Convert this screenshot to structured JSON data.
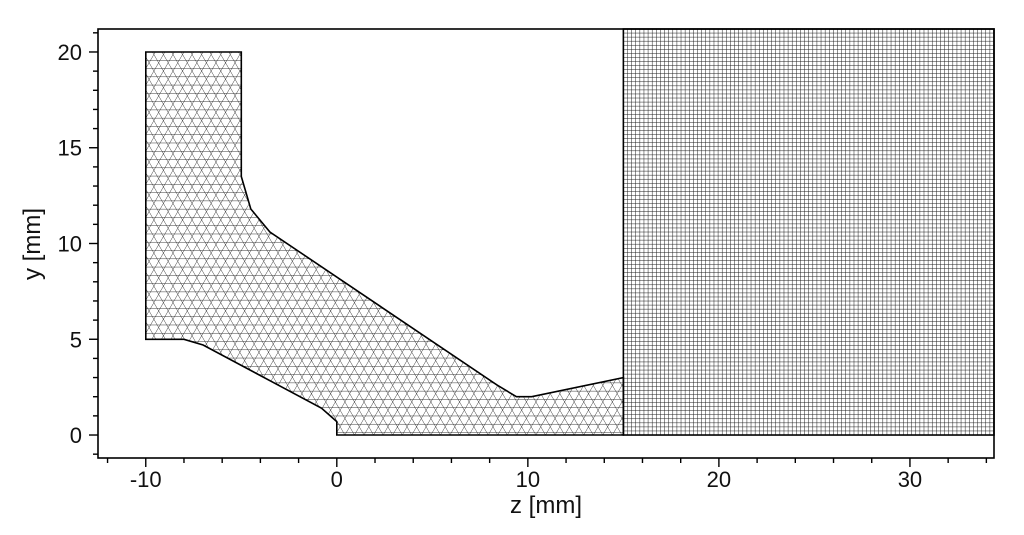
{
  "figure": {
    "xlabel": "z [mm]",
    "ylabel": "y [mm]"
  },
  "chart_data": {
    "type": "mesh",
    "xlabel": "z [mm]",
    "ylabel": "y [mm]",
    "xlim": [
      -12.5,
      34.4
    ],
    "ylim": [
      -1.2,
      21.2
    ],
    "xticks": [
      -10,
      0,
      10,
      20,
      30
    ],
    "xtick_labels": [
      "-10",
      "0",
      "10",
      "20",
      "30"
    ],
    "yticks": [
      0,
      5,
      10,
      15,
      20
    ],
    "ytick_labels": [
      "0",
      "5",
      "10",
      "15",
      "20"
    ],
    "regions": [
      {
        "name": "triangular-mesh-region",
        "mesh": "triangular",
        "element_size_mm": 0.5,
        "outline": [
          [
            -10,
            20
          ],
          [
            -5,
            20
          ],
          [
            -5,
            13.5
          ],
          [
            -4.5,
            11.8
          ],
          [
            -3.5,
            10.6
          ],
          [
            8.4,
            2.6
          ],
          [
            9.4,
            2.0
          ],
          [
            10.2,
            2.0
          ],
          [
            15,
            3.0
          ],
          [
            15,
            0
          ],
          [
            0,
            0
          ],
          [
            0,
            0.7
          ],
          [
            -0.8,
            1.4
          ],
          [
            -7,
            4.7
          ],
          [
            -8,
            5
          ],
          [
            -10,
            5
          ]
        ]
      },
      {
        "name": "structured-quad-mesh-region",
        "mesh": "structured-quadrilateral",
        "z_range": [
          15,
          34.4
        ],
        "y_range": [
          0,
          21.2
        ],
        "columns": 90,
        "rows": 100
      }
    ]
  }
}
